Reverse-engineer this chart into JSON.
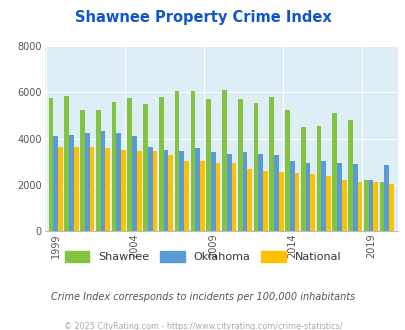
{
  "title": "Shawnee Property Crime Index",
  "subtitle": "Crime Index corresponds to incidents per 100,000 inhabitants",
  "footer": "© 2025 CityRating.com - https://www.cityrating.com/crime-statistics/",
  "years": [
    1999,
    2000,
    2001,
    2002,
    2003,
    2004,
    2005,
    2006,
    2007,
    2008,
    2009,
    2010,
    2011,
    2012,
    2013,
    2014,
    2015,
    2016,
    2017,
    2018,
    2019,
    2020
  ],
  "shawnee": [
    5750,
    5850,
    5250,
    5250,
    5600,
    5750,
    5500,
    5800,
    6050,
    6050,
    5700,
    6100,
    5700,
    5550,
    5800,
    5250,
    4500,
    4550,
    5100,
    4800,
    2200,
    2100
  ],
  "oklahoma": [
    4100,
    4150,
    4250,
    4350,
    4250,
    4100,
    3650,
    3500,
    3450,
    3600,
    3400,
    3350,
    3400,
    3350,
    3300,
    3050,
    2950,
    3050,
    2950,
    2900,
    2200,
    2850
  ],
  "national": [
    3650,
    3650,
    3650,
    3600,
    3500,
    3450,
    3450,
    3300,
    3050,
    3050,
    2950,
    2950,
    2700,
    2600,
    2550,
    2500,
    2450,
    2400,
    2200,
    2100,
    2100,
    2050
  ],
  "shawnee_color": "#82c341",
  "oklahoma_color": "#5b9bd5",
  "national_color": "#ffc000",
  "bg_color": "#deeef6",
  "title_color": "#1155cc",
  "subtitle_color": "#555555",
  "footer_color": "#aaaaaa",
  "ylim": [
    0,
    8000
  ],
  "yticks": [
    0,
    2000,
    4000,
    6000,
    8000
  ],
  "xtick_years": [
    1999,
    2004,
    2009,
    2014,
    2019
  ],
  "figsize": [
    4.06,
    3.3
  ],
  "dpi": 100
}
